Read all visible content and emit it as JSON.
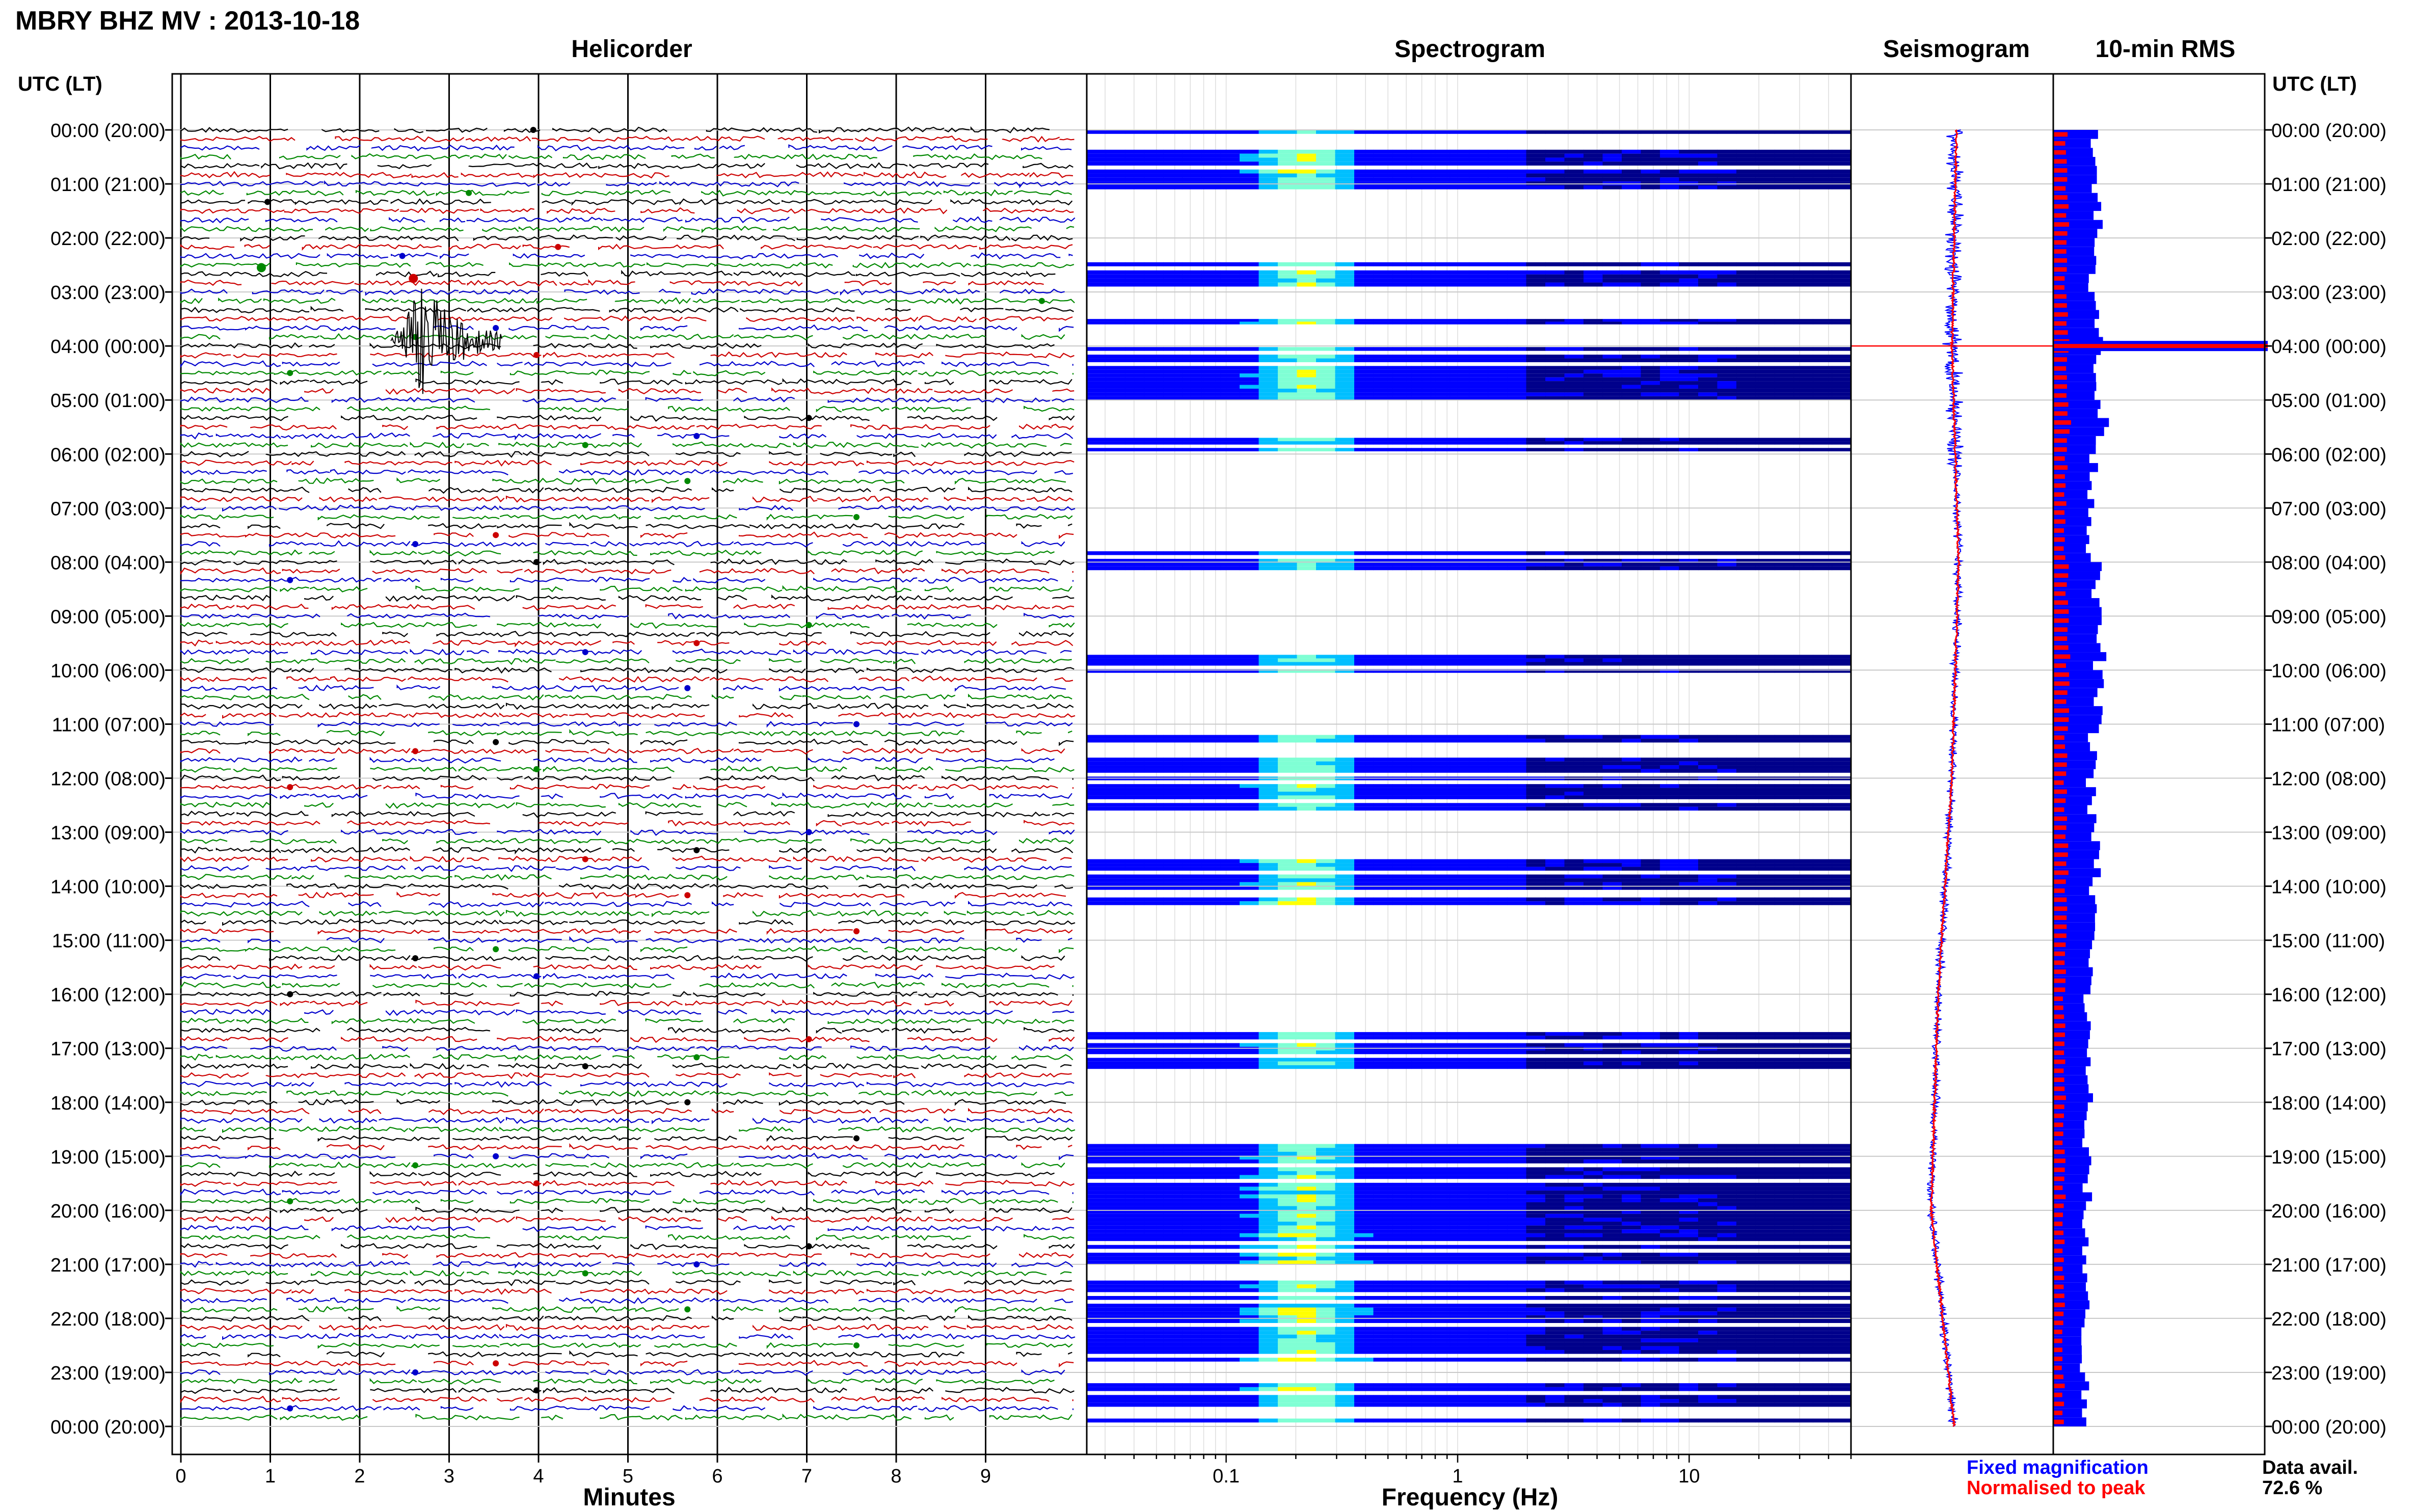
{
  "chart_data": {
    "title": "MBRY BHZ MV : 2013-10-18",
    "utc_header": "UTC (LT)",
    "time_labels": [
      "00:00 (20:00)",
      "01:00 (21:00)",
      "02:00 (22:00)",
      "03:00 (23:00)",
      "04:00 (00:00)",
      "05:00 (01:00)",
      "06:00 (02:00)",
      "07:00 (03:00)",
      "08:00 (04:00)",
      "09:00 (05:00)",
      "10:00 (06:00)",
      "11:00 (07:00)",
      "12:00 (08:00)",
      "13:00 (09:00)",
      "14:00 (10:00)",
      "15:00 (11:00)",
      "16:00 (12:00)",
      "17:00 (13:00)",
      "18:00 (14:00)",
      "19:00 (15:00)",
      "20:00 (16:00)",
      "21:00 (17:00)",
      "22:00 (18:00)",
      "23:00 (19:00)",
      "00:00 (20:00)"
    ],
    "panels": [
      {
        "type": "helicorder",
        "title": "Helicorder",
        "xlabel": "Minutes",
        "xticks": [
          "0",
          "1",
          "2",
          "3",
          "4",
          "5",
          "6",
          "7",
          "8",
          "9"
        ],
        "xlim": [
          0,
          10
        ],
        "trace_colors": [
          "#000000",
          "#cc0000",
          "#0000cc",
          "#008800"
        ],
        "rows_per_hour": 6,
        "event": {
          "hour": 3.9,
          "minute_start": 2.35,
          "minute_end": 3.6,
          "description_shown": false
        }
      },
      {
        "type": "heatmap",
        "title": "Spectrogram",
        "xlabel": "Frequency (Hz)",
        "xscale": "log",
        "xticks": [
          "0.1",
          "1",
          "10"
        ],
        "xlim": [
          0.025,
          50
        ],
        "colormap": [
          "#00008b",
          "#0000ff",
          "#00bfff",
          "#7fffd4",
          "#ffff00"
        ],
        "active_hours": [
          [
            0,
            1.1
          ],
          [
            2.45,
            2.9
          ],
          [
            3.5,
            3.6
          ],
          [
            3.95,
            5.0
          ],
          [
            5.7,
            5.95
          ],
          [
            7.8,
            8.15
          ],
          [
            9.65,
            10.05
          ],
          [
            11.2,
            12.6
          ],
          [
            13.5,
            14.35
          ],
          [
            16.7,
            17.45
          ],
          [
            18.7,
            21.0
          ],
          [
            21.3,
            22.8
          ],
          [
            23.2,
            24.0
          ]
        ]
      },
      {
        "type": "line",
        "title": "Seismogram",
        "series": [
          {
            "name": "Fixed magnification",
            "color": "#0000ff"
          },
          {
            "name": "Normalised to peak",
            "color": "#ff0000"
          }
        ],
        "drift": [
          [
            0,
            0.0
          ],
          [
            4,
            -0.1
          ],
          [
            8,
            0.05
          ],
          [
            12,
            -0.1
          ],
          [
            16,
            -0.4
          ],
          [
            20,
            -0.55
          ],
          [
            22,
            -0.3
          ],
          [
            24,
            -0.05
          ]
        ],
        "spike_hour": 4.0
      },
      {
        "type": "bar",
        "title": "10-min RMS",
        "series": [
          {
            "name": "Fixed magnification",
            "color": "#0000ff"
          },
          {
            "name": "Normalised to peak",
            "color": "#ff0000"
          }
        ],
        "rms_levels": [
          0.2,
          0.21,
          0.19,
          0.22,
          0.2,
          0.23,
          0.19,
          0.18,
          0.2,
          0.22,
          0.21,
          0.19,
          0.18,
          0.2,
          0.19,
          0.17,
          0.16,
          0.17,
          0.15,
          0.16,
          0.15,
          0.16,
          0.14,
          0.15
        ],
        "peak_hour": 4.0
      }
    ],
    "legend": {
      "fixed": "Fixed magnification",
      "normalised": "Normalised to peak",
      "fixed_color": "#0000ff",
      "normalised_color": "#ff0000"
    },
    "data_avail": {
      "label": "Data avail.",
      "value": "72.6 %"
    }
  }
}
